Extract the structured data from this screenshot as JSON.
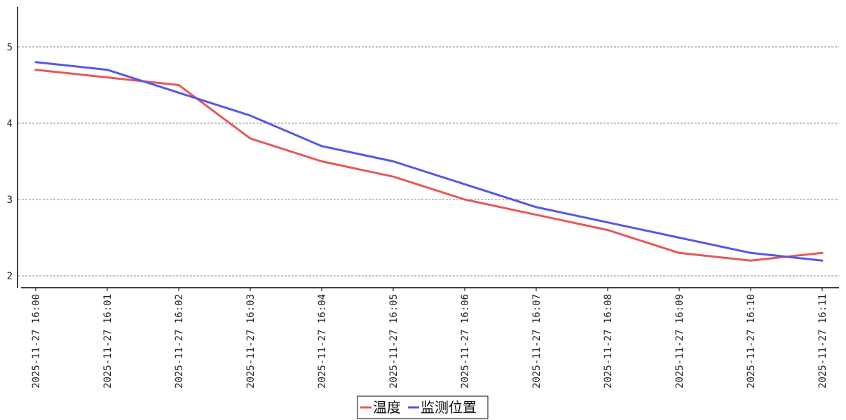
{
  "chart_data": {
    "type": "line",
    "x": [
      "2025-11-27 16:00",
      "2025-11-27 16:01",
      "2025-11-27 16:02",
      "2025-11-27 16:03",
      "2025-11-27 16:04",
      "2025-11-27 16:05",
      "2025-11-27 16:06",
      "2025-11-27 16:07",
      "2025-11-27 16:08",
      "2025-11-27 16:09",
      "2025-11-27 16:10",
      "2025-11-27 16:11"
    ],
    "series": [
      {
        "name": "温度",
        "color": "#e95757",
        "values": [
          4.7,
          4.6,
          4.5,
          3.8,
          3.5,
          3.3,
          3.0,
          2.8,
          2.6,
          2.3,
          2.2,
          2.3
        ]
      },
      {
        "name": "监测位置",
        "color": "#5757e9",
        "values": [
          4.8,
          4.7,
          4.4,
          4.1,
          3.7,
          3.5,
          3.2,
          2.9,
          2.7,
          2.5,
          2.3,
          2.2
        ]
      }
    ],
    "yticks": [
      2,
      3,
      4,
      5
    ],
    "ylim": [
      1.85,
      5.55
    ],
    "grid": "horizontal-dashed",
    "legend_position": "bottom-center",
    "title": "",
    "xlabel": "",
    "ylabel": ""
  }
}
